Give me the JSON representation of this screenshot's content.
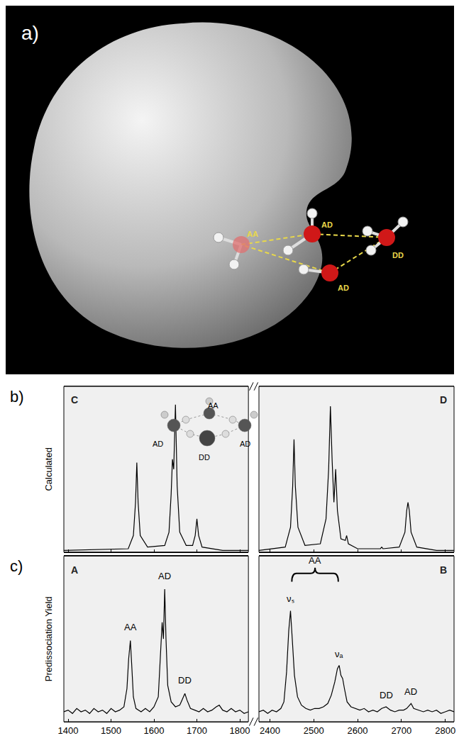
{
  "panel_a": {
    "label": "a)",
    "atom_labels": [
      "AA",
      "AD",
      "DD",
      "AD"
    ]
  },
  "chart_data": [
    {
      "type": "line",
      "panel": "b)",
      "ylabel": "Calculated",
      "corner_labels": [
        "C",
        "D"
      ],
      "inset_labels": [
        "AD",
        "AA",
        "AD",
        "DD"
      ],
      "color": "#000000",
      "grid": false,
      "tick_labels": false,
      "ylim": [
        0,
        1
      ],
      "yticks": [],
      "segments": [
        {
          "xlim": [
            1390,
            1820
          ],
          "xticks": [
            1400,
            1500,
            1600,
            1700,
            1800
          ],
          "x": [
            1390,
            1540,
            1552,
            1557,
            1560,
            1563,
            1568,
            1585,
            1625,
            1635,
            1640,
            1643,
            1646,
            1650,
            1654,
            1660,
            1675,
            1690,
            1696,
            1700,
            1704,
            1712,
            1760,
            1820
          ],
          "values": [
            0.01,
            0.02,
            0.1,
            0.3,
            0.54,
            0.3,
            0.1,
            0.03,
            0.04,
            0.12,
            0.35,
            0.56,
            0.5,
            0.89,
            0.4,
            0.12,
            0.04,
            0.04,
            0.1,
            0.2,
            0.1,
            0.03,
            0.01,
            0.01
          ]
        },
        {
          "xlim": [
            2375,
            2820
          ],
          "xticks": [
            2400,
            2500,
            2600,
            2700,
            2800
          ],
          "x": [
            2375,
            2435,
            2447,
            2452,
            2455,
            2458,
            2464,
            2480,
            2515,
            2528,
            2534,
            2538,
            2542,
            2546,
            2550,
            2554,
            2562,
            2572,
            2575,
            2579,
            2600,
            2652,
            2655,
            2658,
            2695,
            2708,
            2712,
            2715,
            2718,
            2722,
            2735,
            2780,
            2820
          ],
          "values": [
            0.01,
            0.03,
            0.15,
            0.4,
            0.68,
            0.4,
            0.15,
            0.04,
            0.05,
            0.2,
            0.5,
            0.88,
            0.55,
            0.3,
            0.5,
            0.25,
            0.08,
            0.07,
            0.1,
            0.05,
            0.02,
            0.02,
            0.03,
            0.02,
            0.03,
            0.12,
            0.25,
            0.3,
            0.25,
            0.12,
            0.03,
            0.01,
            0.01
          ]
        }
      ],
      "annotations": []
    },
    {
      "type": "line",
      "panel": "c)",
      "ylabel": "Predissociation Yield",
      "corner_labels": [
        "A",
        "B"
      ],
      "color": "#000000",
      "grid": false,
      "tick_labels": "x",
      "ylim": [
        0,
        1
      ],
      "yticks": [],
      "segments": [
        {
          "xlim": [
            1390,
            1820
          ],
          "xticks": [
            1400,
            1500,
            1600,
            1700,
            1800
          ],
          "x": [
            1390,
            1400,
            1410,
            1420,
            1430,
            1440,
            1450,
            1460,
            1470,
            1480,
            1490,
            1500,
            1510,
            1520,
            1530,
            1537,
            1541,
            1545,
            1548,
            1552,
            1558,
            1570,
            1580,
            1590,
            1600,
            1610,
            1615,
            1619,
            1622,
            1625,
            1628,
            1632,
            1640,
            1650,
            1660,
            1667,
            1672,
            1677,
            1685,
            1695,
            1705,
            1715,
            1725,
            1735,
            1745,
            1752,
            1760,
            1770,
            1780,
            1790,
            1800,
            1810,
            1820
          ],
          "values": [
            0.06,
            0.07,
            0.05,
            0.08,
            0.06,
            0.07,
            0.05,
            0.08,
            0.06,
            0.07,
            0.05,
            0.08,
            0.06,
            0.07,
            0.09,
            0.2,
            0.38,
            0.49,
            0.35,
            0.15,
            0.08,
            0.06,
            0.08,
            0.06,
            0.09,
            0.15,
            0.4,
            0.6,
            0.5,
            0.8,
            0.5,
            0.22,
            0.12,
            0.09,
            0.1,
            0.14,
            0.17,
            0.13,
            0.08,
            0.07,
            0.06,
            0.08,
            0.06,
            0.07,
            0.09,
            0.1,
            0.07,
            0.06,
            0.08,
            0.06,
            0.07,
            0.05,
            0.06
          ]
        },
        {
          "xlim": [
            2375,
            2820
          ],
          "xticks": [
            2400,
            2500,
            2600,
            2700,
            2800
          ],
          "x": [
            2375,
            2385,
            2395,
            2405,
            2415,
            2425,
            2432,
            2438,
            2443,
            2447,
            2451,
            2456,
            2463,
            2472,
            2482,
            2492,
            2502,
            2512,
            2522,
            2532,
            2540,
            2548,
            2554,
            2558,
            2562,
            2566,
            2570,
            2576,
            2585,
            2595,
            2605,
            2615,
            2625,
            2635,
            2645,
            2655,
            2665,
            2675,
            2685,
            2695,
            2705,
            2712,
            2718,
            2722,
            2728,
            2738,
            2750,
            2760,
            2770,
            2780,
            2790,
            2800,
            2810,
            2820
          ],
          "values": [
            0.06,
            0.07,
            0.05,
            0.07,
            0.06,
            0.08,
            0.12,
            0.3,
            0.55,
            0.67,
            0.5,
            0.28,
            0.15,
            0.1,
            0.08,
            0.07,
            0.08,
            0.08,
            0.09,
            0.11,
            0.16,
            0.24,
            0.32,
            0.34,
            0.28,
            0.26,
            0.2,
            0.12,
            0.09,
            0.08,
            0.07,
            0.08,
            0.06,
            0.07,
            0.06,
            0.08,
            0.09,
            0.07,
            0.06,
            0.07,
            0.07,
            0.08,
            0.1,
            0.11,
            0.08,
            0.07,
            0.06,
            0.07,
            0.06,
            0.07,
            0.05,
            0.06,
            0.07,
            0.06
          ]
        }
      ],
      "annotations": [
        {
          "text": "AA",
          "x": 1545,
          "y": 0.53
        },
        {
          "text": "AD",
          "x": 1625,
          "y": 0.84
        },
        {
          "text": "DD",
          "x": 1672,
          "y": 0.21
        },
        {
          "text": "νₛ",
          "x": 2447,
          "y": 0.7
        },
        {
          "text": "νₐ",
          "x": 2558,
          "y": 0.37
        },
        {
          "text": "DD",
          "x": 2665,
          "y": 0.12
        },
        {
          "text": "AD",
          "x": 2722,
          "y": 0.14
        },
        {
          "text": "AA",
          "x": 2503,
          "y": 0.9,
          "brace": [
            2450,
            2556
          ]
        }
      ]
    }
  ]
}
